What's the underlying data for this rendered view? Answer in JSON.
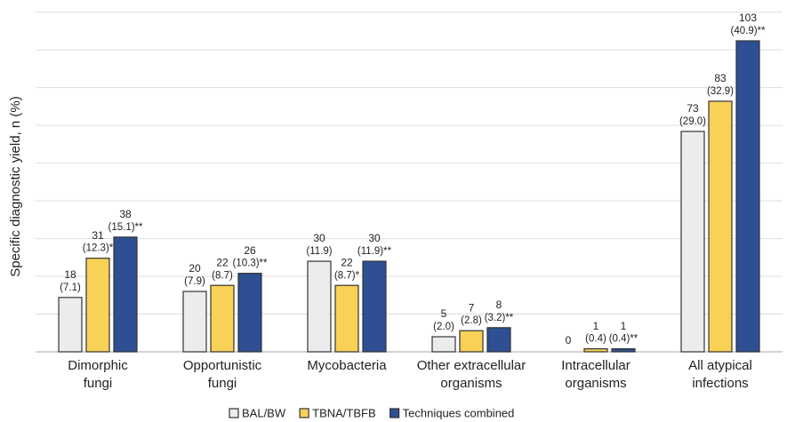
{
  "chart_data": {
    "type": "bar",
    "y_label": "Specific diagnostic yield, n (%)",
    "categories": [
      [
        "Dimorphic",
        "fungi"
      ],
      [
        "Opportunistic",
        "fungi"
      ],
      [
        "Mycobacteria"
      ],
      [
        "Other extracellular",
        "organisms"
      ],
      [
        "Intracellular",
        "organisms"
      ],
      [
        "All atypical",
        "infections"
      ]
    ],
    "series": [
      {
        "name": "BAL/BW",
        "color": "#ececec",
        "values": [
          18,
          20,
          30,
          5,
          0,
          73
        ],
        "percent_labels": [
          "(7.1)",
          "(7.9)",
          "(11.9)",
          "(2.0)",
          null,
          "(29.0)"
        ]
      },
      {
        "name": "TBNA/TBFB",
        "color": "#f9d157",
        "values": [
          31,
          22,
          22,
          7,
          1,
          83
        ],
        "percent_labels": [
          "(12.3)*",
          "(8.7)",
          "(8.7)*",
          "(2.8)",
          "(0.4)",
          "(32.9)"
        ]
      },
      {
        "name": "Techniques combined",
        "color": "#2e4f93",
        "values": [
          38,
          26,
          30,
          8,
          1,
          103
        ],
        "percent_labels": [
          "(15.1)**",
          "(10.3)**",
          "(11.9)**",
          "(3.2)**",
          "(0.4)**",
          "(40.9)**"
        ]
      }
    ],
    "ylim": [
      0,
      113
    ],
    "yticks": [
      0,
      12.5,
      25,
      37.5,
      50,
      62.5,
      75,
      87.5,
      100,
      112.5
    ],
    "grid": true,
    "legend": "bottom"
  }
}
